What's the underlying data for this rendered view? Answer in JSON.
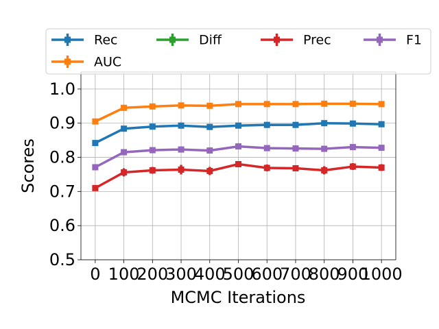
{
  "chart_data": {
    "type": "line",
    "xlabel": "MCMC Iterations",
    "ylabel": "Scores",
    "x": [
      0,
      100,
      200,
      300,
      400,
      500,
      600,
      700,
      800,
      900,
      1000
    ],
    "series": [
      {
        "name": "Rec",
        "color": "#1f77b4",
        "values": [
          0.842,
          0.884,
          0.89,
          0.893,
          0.889,
          0.893,
          0.895,
          0.895,
          0.9,
          0.899,
          0.897
        ],
        "errors": [
          0.005,
          0.005,
          0.005,
          0.005,
          0.005,
          0.005,
          0.005,
          0.005,
          0.005,
          0.005,
          0.005
        ]
      },
      {
        "name": "AUC",
        "color": "#ff7f0e",
        "values": [
          0.905,
          0.945,
          0.949,
          0.952,
          0.951,
          0.956,
          0.956,
          0.956,
          0.957,
          0.957,
          0.956
        ],
        "errors": [
          0.003,
          0.003,
          0.003,
          0.003,
          0.003,
          0.003,
          0.003,
          0.003,
          0.003,
          0.003,
          0.003
        ]
      },
      {
        "name": "Diff",
        "color": "#2ca02c",
        "values": [
          null,
          null,
          null,
          null,
          null,
          null,
          null,
          null,
          null,
          null,
          null
        ],
        "errors": [
          null,
          null,
          null,
          null,
          null,
          null,
          null,
          null,
          null,
          null,
          null
        ]
      },
      {
        "name": "Prec",
        "color": "#d62728",
        "values": [
          0.71,
          0.756,
          0.762,
          0.764,
          0.76,
          0.78,
          0.769,
          0.768,
          0.762,
          0.773,
          0.77
        ],
        "errors": [
          0.006,
          0.012,
          0.01,
          0.014,
          0.012,
          0.007,
          0.01,
          0.009,
          0.012,
          0.01,
          0.01
        ]
      },
      {
        "name": "F1",
        "color": "#9467bd",
        "values": [
          0.771,
          0.815,
          0.821,
          0.823,
          0.82,
          0.832,
          0.827,
          0.826,
          0.825,
          0.83,
          0.828
        ],
        "errors": [
          0.004,
          0.006,
          0.006,
          0.007,
          0.007,
          0.005,
          0.006,
          0.005,
          0.007,
          0.006,
          0.006
        ]
      }
    ],
    "xlim": [
      -50,
      1050
    ],
    "xticks": [
      0,
      100,
      200,
      300,
      400,
      500,
      600,
      700,
      800,
      900,
      1000
    ],
    "ylim": [
      0.5,
      1.05
    ],
    "yticks": [
      0.5,
      0.6,
      0.7,
      0.8,
      0.9,
      {
        "value": 1.0,
        "label": "1.0"
      }
    ],
    "grid": true,
    "legend": "upper center"
  }
}
